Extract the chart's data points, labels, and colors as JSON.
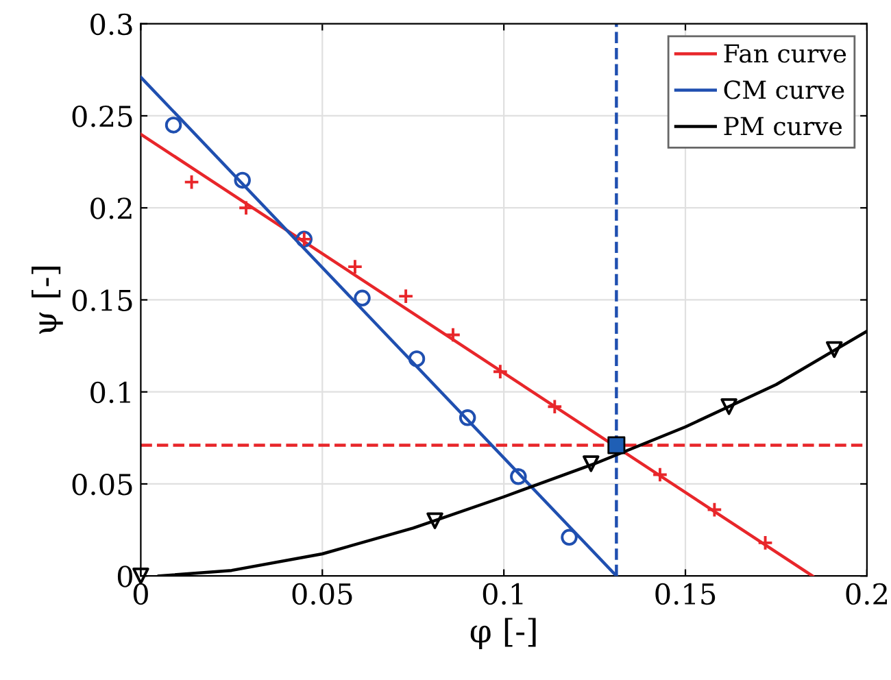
{
  "chart_data": {
    "type": "line",
    "xlabel": "φ [-]",
    "ylabel": "ψ [-]",
    "xlim": [
      0,
      0.2
    ],
    "ylim": [
      0,
      0.3
    ],
    "xticks": [
      0,
      0.05,
      0.1,
      0.15,
      0.2
    ],
    "yticks": [
      0,
      0.05,
      0.1,
      0.15,
      0.2,
      0.25,
      0.3
    ],
    "grid": true,
    "legend": "top right",
    "series": [
      {
        "name": "Fan curve",
        "color": "#e8262a",
        "marker": "none",
        "x": [
          0,
          0.185
        ],
        "values": [
          0.24,
          0
        ]
      },
      {
        "name": "CM curve",
        "color": "#1f4fb0",
        "marker": "none",
        "x": [
          0,
          0.131
        ],
        "values": [
          0.271,
          0
        ]
      },
      {
        "name": "PM curve",
        "color": "#000000",
        "marker": "none",
        "x": [
          0.005,
          0.025,
          0.05,
          0.075,
          0.1,
          0.125,
          0.15,
          0.175,
          0.2
        ],
        "values": [
          0,
          0.003,
          0.012,
          0.026,
          0.043,
          0.061,
          0.081,
          0.104,
          0.133
        ]
      },
      {
        "type": "scatter",
        "color": "#e8262a",
        "marker": "cross",
        "x": [
          0.014,
          0.029,
          0.045,
          0.059,
          0.073,
          0.086,
          0.099,
          0.114,
          0.143,
          0.158,
          0.172
        ],
        "values": [
          0.214,
          0.2,
          0.183,
          0.168,
          0.152,
          0.131,
          0.111,
          0.092,
          0.055,
          0.036,
          0.018
        ]
      },
      {
        "type": "scatter",
        "color": "#1f4fb0",
        "marker": "circle",
        "x": [
          0.009,
          0.028,
          0.045,
          0.061,
          0.076,
          0.09,
          0.104,
          0.118
        ],
        "values": [
          0.245,
          0.215,
          0.183,
          0.151,
          0.118,
          0.086,
          0.054,
          0.021
        ]
      },
      {
        "type": "scatter",
        "color": "#000000",
        "marker": "triangle",
        "x": [
          0,
          0.081,
          0.124,
          0.162,
          0.191
        ],
        "values": [
          0,
          0.03,
          0.061,
          0.092,
          0.123
        ]
      },
      {
        "type": "scatter",
        "color": "#1f5fb5",
        "marker": "square",
        "x": [
          0.131
        ],
        "values": [
          0.071
        ]
      }
    ],
    "ref_lines": [
      {
        "axis": "x",
        "value": 0.131,
        "color": "#1f4fb0",
        "line_style": "dashed"
      },
      {
        "axis": "y",
        "value": 0.071,
        "color": "#e8262a",
        "line_style": "dashed"
      }
    ]
  }
}
